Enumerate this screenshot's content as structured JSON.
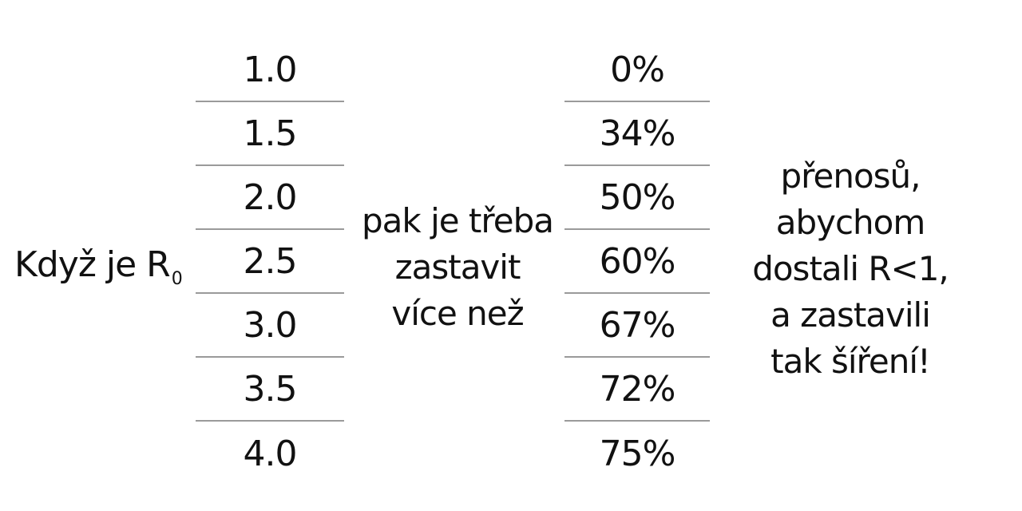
{
  "lead": {
    "text": "Když je R",
    "subscript": "0"
  },
  "r0_values": [
    "1.0",
    "1.5",
    "2.0",
    "2.5",
    "3.0",
    "3.5",
    "4.0"
  ],
  "middle_lines": [
    "pak je třeba",
    "zastavit",
    "více než"
  ],
  "percent_values": [
    "0%",
    "34%",
    "50%",
    "60%",
    "67%",
    "72%",
    "75%"
  ],
  "right_lines": [
    "přenosů,",
    "abychom",
    "dostali R<1,",
    "a zastavili",
    "tak šíření!"
  ]
}
